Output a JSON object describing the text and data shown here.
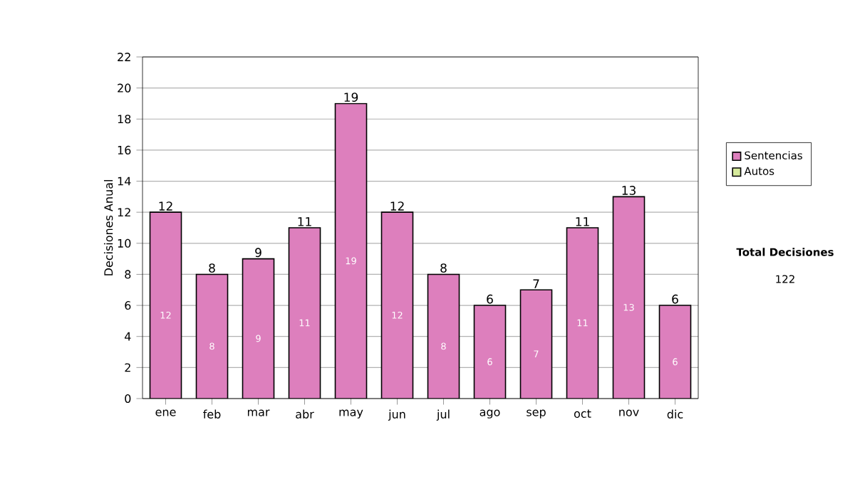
{
  "chart_data": {
    "type": "bar",
    "ylabel": "Decisiones Anual",
    "categories": [
      "ene",
      "feb",
      "mar",
      "abr",
      "may",
      "jun",
      "jul",
      "ago",
      "sep",
      "oct",
      "nov",
      "dic"
    ],
    "series": [
      {
        "name": "Sentencias",
        "color": "#dd7fbd",
        "values": [
          12,
          8,
          9,
          11,
          19,
          12,
          8,
          6,
          7,
          11,
          13,
          6
        ],
        "value_labels": [
          "12",
          "8",
          "9",
          "11",
          "19",
          "12",
          "8",
          "6",
          "7",
          "11",
          "13",
          "6"
        ]
      },
      {
        "name": "Autos",
        "color": "#d6ea9c",
        "values": [
          0,
          0,
          0,
          0,
          0,
          0,
          0,
          0,
          0,
          0,
          0,
          0
        ]
      }
    ],
    "stacked": true,
    "totals": [
      "12",
      "8",
      "9",
      "11",
      "19",
      "12",
      "8",
      "6",
      "7",
      "11",
      "13",
      "6"
    ],
    "ylim": [
      0,
      22
    ],
    "yticks": [
      0,
      2,
      4,
      6,
      8,
      10,
      12,
      14,
      16,
      18,
      20,
      22
    ],
    "grid": "y",
    "legend": "right",
    "annotations": [
      "Total Decisiones",
      "122"
    ]
  }
}
